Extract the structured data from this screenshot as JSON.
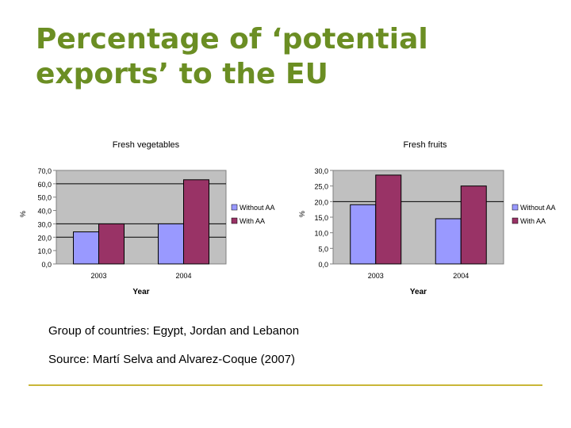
{
  "slide": {
    "title_line1": "Percentage of ‘potential",
    "title_line2": "exports’ to the EU",
    "note1": "Group of countries: Egypt, Jordan and Lebanon",
    "note2": "Source: Martí Selva and Alvarez-Coque (2007)",
    "accent_color": "#6b8e23",
    "rule_color": "#c9b637"
  },
  "chart_data": [
    {
      "type": "bar",
      "title": "Fresh vegetables",
      "categories": [
        "2003",
        "2004"
      ],
      "series": [
        {
          "name": "Without AA",
          "values": [
            24,
            30
          ],
          "color": "#9999ff"
        },
        {
          "name": "With AA",
          "values": [
            30,
            63
          ],
          "color": "#993366"
        }
      ],
      "xlabel": "Year",
      "ylabel": "%",
      "ylim": [
        0,
        70
      ],
      "yticks": [
        0,
        10,
        20,
        30,
        40,
        50,
        60,
        70
      ],
      "ytick_labels": [
        "0,0",
        "10,0",
        "20,0",
        "30,0",
        "40,0",
        "50,0",
        "60,0",
        "70,0"
      ],
      "gridlines": [
        20,
        30,
        60
      ],
      "legend": "right"
    },
    {
      "type": "bar",
      "title": "Fresh fruits",
      "categories": [
        "2003",
        "2004"
      ],
      "series": [
        {
          "name": "Without AA",
          "values": [
            19,
            14.5
          ],
          "color": "#9999ff"
        },
        {
          "name": "With AA",
          "values": [
            28.5,
            25
          ],
          "color": "#993366"
        }
      ],
      "xlabel": "Year",
      "ylabel": "%",
      "ylim": [
        0,
        30
      ],
      "yticks": [
        0,
        5,
        10,
        15,
        20,
        25,
        30
      ],
      "ytick_labels": [
        "0,0",
        "5,0",
        "10,0",
        "15,0",
        "20,0",
        "25,0",
        "30,0"
      ],
      "gridlines": [
        20
      ],
      "legend": "right"
    }
  ]
}
